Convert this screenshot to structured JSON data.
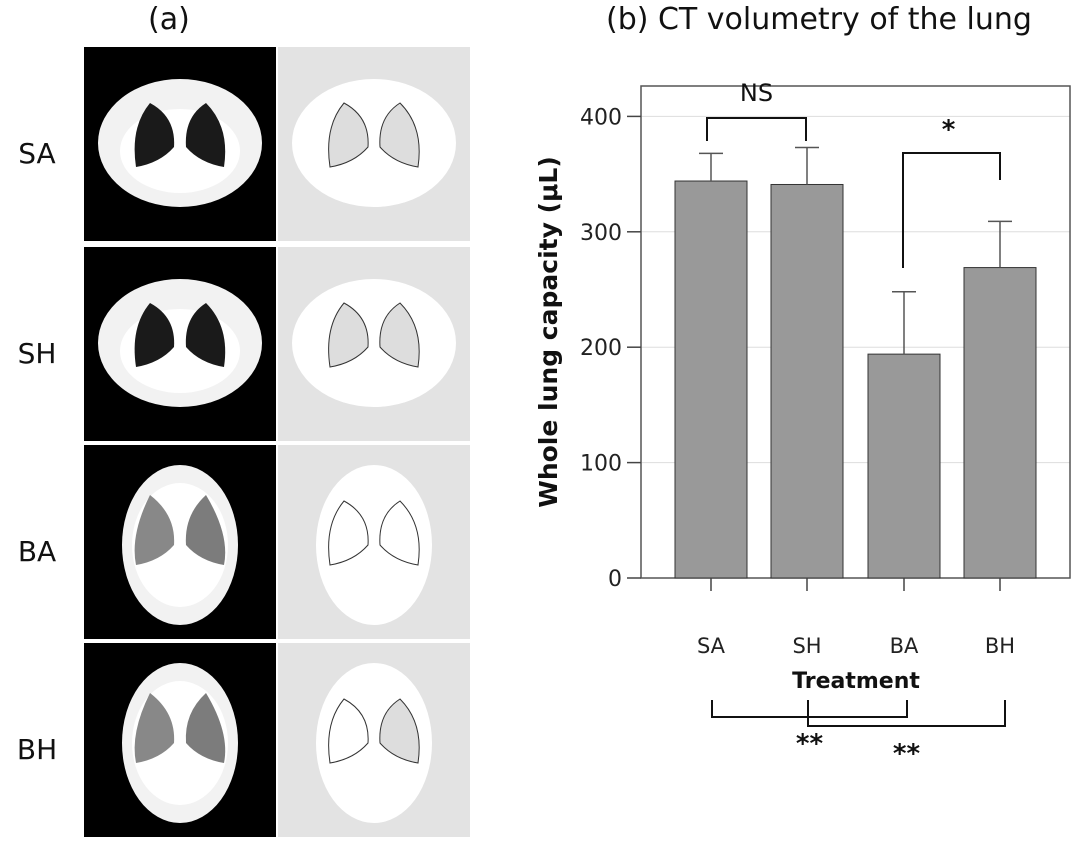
{
  "panel_a": {
    "title": "(a)",
    "rows": [
      "SA",
      "SH",
      "BA",
      "BH"
    ]
  },
  "panel_b": {
    "title": "(b) CT volumetry of the lung"
  },
  "colors": {
    "bar": "#999999",
    "bar_stroke": "#333333",
    "grid": "#dddddd",
    "seg_bg": "#e3e3e3"
  },
  "chart_data": {
    "type": "bar",
    "title": "(b) CT volumetry of the lung",
    "xlabel": "Treatment",
    "ylabel": "Whole lung capacity (μL)",
    "categories": [
      "SA",
      "SH",
      "BA",
      "BH"
    ],
    "values": [
      344,
      341,
      194,
      269
    ],
    "error_upper": [
      368,
      373,
      248,
      309
    ],
    "ylim": [
      0,
      400
    ],
    "yticks": [
      "0",
      "100",
      "200",
      "300",
      "400"
    ],
    "grid": true,
    "annotations": [
      {
        "pair": [
          "SA",
          "SH"
        ],
        "label": "NS",
        "position": "above"
      },
      {
        "pair": [
          "BA",
          "BH"
        ],
        "label": "*",
        "position": "above"
      },
      {
        "pair": [
          "SA",
          "BA"
        ],
        "label": "**",
        "position": "below"
      },
      {
        "pair": [
          "SH",
          "BH"
        ],
        "label": "**",
        "position": "below"
      }
    ]
  }
}
